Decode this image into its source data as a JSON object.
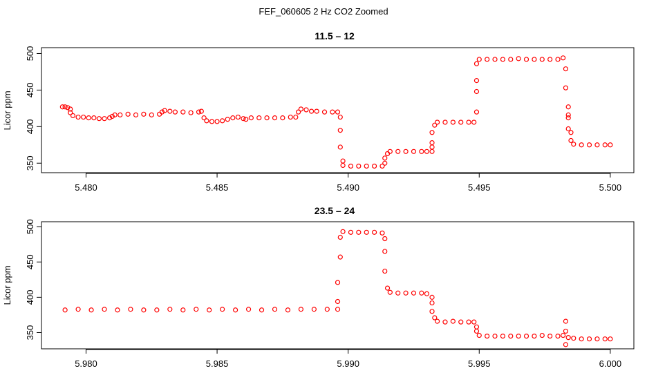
{
  "figure": {
    "suptitle": "FEF_060605  2 Hz CO2 Zoomed"
  },
  "chart_data": [
    {
      "type": "scatter",
      "title": "11.5 – 12",
      "xlabel": "",
      "ylabel": "Licor ppm",
      "xlim": [
        5.4783,
        5.5009
      ],
      "ylim": [
        337,
        508
      ],
      "xticks": [
        5.48,
        5.485,
        5.49,
        5.495,
        5.5
      ],
      "xtick_labels": [
        "5.480",
        "5.485",
        "5.490",
        "5.495",
        "5.500"
      ],
      "yticks": [
        350,
        400,
        450,
        500
      ],
      "ytick_labels": [
        "350",
        "400",
        "450",
        "500"
      ],
      "grid": false,
      "marker": "open-circle",
      "color": "#ff0000",
      "series": [
        {
          "points": [
            [
              5.4791,
              427
            ],
            [
              5.4792,
              427
            ],
            [
              5.4793,
              426
            ],
            [
              5.4794,
              424
            ],
            [
              5.4794,
              419
            ],
            [
              5.4795,
              415
            ],
            [
              5.4797,
              413
            ],
            [
              5.4799,
              413
            ],
            [
              5.4801,
              412
            ],
            [
              5.4803,
              412
            ],
            [
              5.4805,
              411
            ],
            [
              5.4807,
              411
            ],
            [
              5.4809,
              412
            ],
            [
              5.481,
              414
            ],
            [
              5.4811,
              416
            ],
            [
              5.4813,
              416
            ],
            [
              5.4816,
              417
            ],
            [
              5.4819,
              416
            ],
            [
              5.4822,
              417
            ],
            [
              5.4825,
              416
            ],
            [
              5.4828,
              417
            ],
            [
              5.4829,
              420
            ],
            [
              5.483,
              422
            ],
            [
              5.4832,
              421
            ],
            [
              5.4834,
              420
            ],
            [
              5.4837,
              420
            ],
            [
              5.484,
              419
            ],
            [
              5.4843,
              420
            ],
            [
              5.4844,
              421
            ],
            [
              5.4845,
              412
            ],
            [
              5.4846,
              408
            ],
            [
              5.4848,
              407
            ],
            [
              5.485,
              407
            ],
            [
              5.4852,
              408
            ],
            [
              5.4854,
              410
            ],
            [
              5.4856,
              412
            ],
            [
              5.4858,
              413
            ],
            [
              5.486,
              411
            ],
            [
              5.4861,
              410
            ],
            [
              5.4863,
              412
            ],
            [
              5.4866,
              412
            ],
            [
              5.4869,
              412
            ],
            [
              5.4872,
              412
            ],
            [
              5.4875,
              412
            ],
            [
              5.4878,
              413
            ],
            [
              5.488,
              413
            ],
            [
              5.4881,
              420
            ],
            [
              5.4882,
              424
            ],
            [
              5.4884,
              423
            ],
            [
              5.4886,
              421
            ],
            [
              5.4888,
              421
            ],
            [
              5.4891,
              420
            ],
            [
              5.4894,
              420
            ],
            [
              5.4896,
              420
            ],
            [
              5.4897,
              413
            ],
            [
              5.4897,
              395
            ],
            [
              5.4897,
              372
            ],
            [
              5.4898,
              353
            ],
            [
              5.4898,
              347
            ],
            [
              5.4901,
              346
            ],
            [
              5.4904,
              346
            ],
            [
              5.4907,
              346
            ],
            [
              5.491,
              346
            ],
            [
              5.4913,
              346
            ],
            [
              5.4914,
              350
            ],
            [
              5.4914,
              357
            ],
            [
              5.4915,
              363
            ],
            [
              5.4916,
              366
            ],
            [
              5.4919,
              366
            ],
            [
              5.4922,
              366
            ],
            [
              5.4925,
              366
            ],
            [
              5.4928,
              366
            ],
            [
              5.493,
              366
            ],
            [
              5.4932,
              366
            ],
            [
              5.4932,
              372
            ],
            [
              5.4932,
              378
            ],
            [
              5.4932,
              392
            ],
            [
              5.4933,
              402
            ],
            [
              5.4934,
              406
            ],
            [
              5.4937,
              406
            ],
            [
              5.494,
              406
            ],
            [
              5.4943,
              406
            ],
            [
              5.4946,
              406
            ],
            [
              5.4948,
              406
            ],
            [
              5.4949,
              420
            ],
            [
              5.4949,
              448
            ],
            [
              5.4949,
              463
            ],
            [
              5.4949,
              486
            ],
            [
              5.495,
              492
            ],
            [
              5.4953,
              492
            ],
            [
              5.4956,
              492
            ],
            [
              5.4959,
              492
            ],
            [
              5.4962,
              492
            ],
            [
              5.4965,
              493
            ],
            [
              5.4968,
              492
            ],
            [
              5.4971,
              492
            ],
            [
              5.4974,
              492
            ],
            [
              5.4977,
              492
            ],
            [
              5.498,
              492
            ],
            [
              5.4982,
              494
            ],
            [
              5.4983,
              479
            ],
            [
              5.4983,
              453
            ],
            [
              5.4984,
              427
            ],
            [
              5.4984,
              416
            ],
            [
              5.4984,
              412
            ],
            [
              5.4984,
              397
            ],
            [
              5.4985,
              392
            ],
            [
              5.4985,
              381
            ],
            [
              5.4986,
              376
            ],
            [
              5.4989,
              375
            ],
            [
              5.4992,
              375
            ],
            [
              5.4995,
              375
            ],
            [
              5.4998,
              375
            ],
            [
              5.5,
              375
            ]
          ]
        }
      ]
    },
    {
      "type": "scatter",
      "title": "23.5 – 24",
      "xlabel": "",
      "ylabel": "Licor ppm",
      "xlim": [
        5.9783,
        6.0009
      ],
      "ylim": [
        327,
        507
      ],
      "xticks": [
        5.98,
        5.985,
        5.99,
        5.995,
        6.0
      ],
      "xtick_labels": [
        "5.980",
        "5.985",
        "5.990",
        "5.995",
        "6.000"
      ],
      "yticks": [
        350,
        400,
        450,
        500
      ],
      "ytick_labels": [
        "350",
        "400",
        "450",
        "500"
      ],
      "grid": false,
      "marker": "open-circle",
      "color": "#ff0000",
      "series": [
        {
          "points": [
            [
              5.9792,
              382
            ],
            [
              5.9797,
              383
            ],
            [
              5.9802,
              382
            ],
            [
              5.9807,
              383
            ],
            [
              5.9812,
              382
            ],
            [
              5.9817,
              383
            ],
            [
              5.9822,
              382
            ],
            [
              5.9827,
              382
            ],
            [
              5.9832,
              383
            ],
            [
              5.9837,
              382
            ],
            [
              5.9842,
              383
            ],
            [
              5.9847,
              382
            ],
            [
              5.9852,
              383
            ],
            [
              5.9857,
              382
            ],
            [
              5.9862,
              383
            ],
            [
              5.9867,
              382
            ],
            [
              5.9872,
              383
            ],
            [
              5.9877,
              382
            ],
            [
              5.9882,
              383
            ],
            [
              5.9887,
              383
            ],
            [
              5.9892,
              383
            ],
            [
              5.9896,
              383
            ],
            [
              5.9896,
              394
            ],
            [
              5.9896,
              421
            ],
            [
              5.9897,
              457
            ],
            [
              5.9897,
              485
            ],
            [
              5.9898,
              493
            ],
            [
              5.9901,
              492
            ],
            [
              5.9904,
              492
            ],
            [
              5.9907,
              492
            ],
            [
              5.991,
              492
            ],
            [
              5.9913,
              491
            ],
            [
              5.9914,
              483
            ],
            [
              5.9914,
              465
            ],
            [
              5.9914,
              437
            ],
            [
              5.9915,
              413
            ],
            [
              5.9916,
              407
            ],
            [
              5.9919,
              406
            ],
            [
              5.9922,
              406
            ],
            [
              5.9925,
              406
            ],
            [
              5.9928,
              406
            ],
            [
              5.993,
              405
            ],
            [
              5.9932,
              400
            ],
            [
              5.9932,
              392
            ],
            [
              5.9932,
              380
            ],
            [
              5.9933,
              371
            ],
            [
              5.9934,
              366
            ],
            [
              5.9937,
              365
            ],
            [
              5.994,
              366
            ],
            [
              5.9943,
              365
            ],
            [
              5.9946,
              365
            ],
            [
              5.9948,
              365
            ],
            [
              5.9949,
              358
            ],
            [
              5.9949,
              352
            ],
            [
              5.995,
              346
            ],
            [
              5.9953,
              345
            ],
            [
              5.9956,
              345
            ],
            [
              5.9959,
              345
            ],
            [
              5.9962,
              345
            ],
            [
              5.9965,
              345
            ],
            [
              5.9968,
              345
            ],
            [
              5.9971,
              345
            ],
            [
              5.9974,
              346
            ],
            [
              5.9977,
              345
            ],
            [
              5.998,
              345
            ],
            [
              5.9982,
              346
            ],
            [
              5.9983,
              366
            ],
            [
              5.9983,
              352
            ],
            [
              5.9983,
              333
            ],
            [
              5.9984,
              343
            ],
            [
              5.9986,
              342
            ],
            [
              5.9989,
              341
            ],
            [
              5.9992,
              341
            ],
            [
              5.9995,
              341
            ],
            [
              5.9998,
              341
            ],
            [
              6.0,
              341
            ]
          ]
        }
      ]
    }
  ]
}
